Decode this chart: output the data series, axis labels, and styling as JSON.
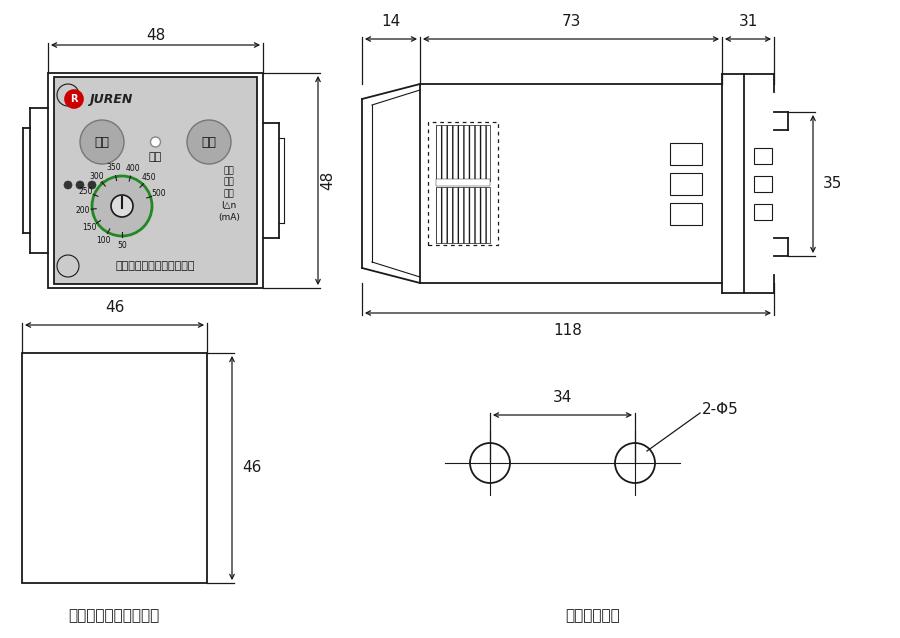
{
  "bg_color": "#ffffff",
  "line_color": "#1a1a1a",
  "dim_color": "#1a1a1a",
  "gray_fill": "#c8c8c8",
  "title_bottom_left": "嵌入式面板开孔尺寸图",
  "title_bottom_right": "固定式尺寸图",
  "brand_text": "JUREN",
  "company": "上海聚仁电力科技有限公司",
  "btn1": "复位",
  "btn2": "试验",
  "indicator": "动作",
  "dial_label": "漏电\n动作\n电流\nI△n\n(mA)",
  "dial_values": [
    50,
    100,
    150,
    200,
    250,
    300,
    350,
    400,
    450,
    500
  ],
  "dial_angles": [
    270,
    242,
    214,
    186,
    158,
    130,
    102,
    74,
    46,
    18
  ],
  "dim_48w": "48",
  "dim_48h": "48",
  "dim_14": "14",
  "dim_73": "73",
  "dim_31": "31",
  "dim_35": "35",
  "dim_118": "118",
  "dim_46w": "46",
  "dim_46h": "46",
  "dim_34": "34",
  "dim_phi5": "2-Φ5"
}
